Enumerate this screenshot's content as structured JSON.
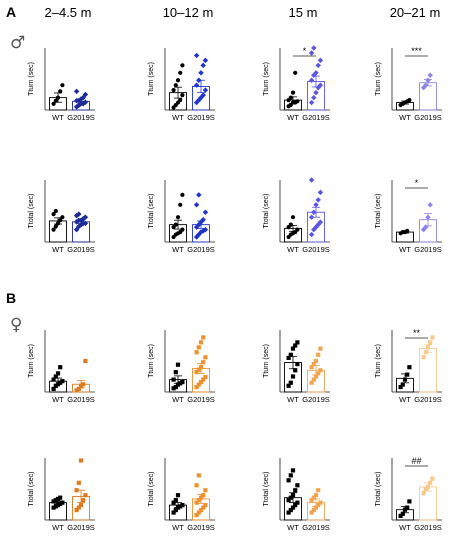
{
  "figure": {
    "panels": [
      "A",
      "B"
    ],
    "sex_symbols": [
      "♂",
      "♀"
    ],
    "age_columns": [
      "2–4.5 m",
      "10–12 m",
      "15 m",
      "20–21 m"
    ]
  },
  "colors": {
    "wt": "#000000",
    "male": [
      "#1c2a9a",
      "#1f35c9",
      "#5b57e0",
      "#8d86ea"
    ],
    "female": [
      "#e07a20",
      "#f0902e",
      "#f0a552",
      "#f8c98c"
    ],
    "axis": "#222222"
  },
  "chart_data": [
    {
      "type": "bar",
      "panel": "A",
      "row": "Tturn",
      "age": "2–4.5 m",
      "categories": [
        "WT",
        "G2019S"
      ],
      "ylabel": "Tturn (sec)",
      "means": [
        4,
        2.8
      ],
      "sem": [
        1.5,
        0.8
      ],
      "points": [
        [
          2,
          3,
          4,
          6,
          8
        ],
        [
          1,
          1.5,
          2,
          2,
          2.5,
          3,
          3,
          3.5,
          4,
          5,
          6
        ]
      ],
      "ylim": [
        0,
        20
      ],
      "significance": ""
    },
    {
      "type": "bar",
      "panel": "A",
      "row": "Tturn",
      "age": "10–12 m",
      "categories": [
        "WT",
        "G2019S"
      ],
      "ylabel": "Tturn (sec)",
      "means": [
        7,
        9.5
      ],
      "sem": [
        2.2,
        2.5
      ],
      "points": [
        [
          1,
          2,
          3,
          4,
          6,
          8,
          10,
          12,
          15,
          18
        ],
        [
          3,
          4,
          5,
          6,
          8,
          10,
          12,
          15,
          18,
          20,
          22
        ]
      ],
      "ylim": [
        0,
        25
      ],
      "significance": ""
    },
    {
      "type": "bar",
      "panel": "A",
      "row": "Tturn",
      "age": "15 m",
      "categories": [
        "WT",
        "G2019S"
      ],
      "ylabel": "Tturn (sec)",
      "means": [
        4,
        11.5
      ],
      "sem": [
        1.3,
        2.2
      ],
      "points": [
        [
          1.5,
          2,
          3,
          3,
          3.5,
          4,
          5,
          7,
          15
        ],
        [
          3,
          5,
          7,
          9,
          10,
          12,
          14,
          15,
          18,
          20,
          23,
          25
        ]
      ],
      "ylim": [
        0,
        25
      ],
      "significance": "*"
    },
    {
      "type": "bar",
      "panel": "A",
      "row": "Tturn",
      "age": "20–21 m",
      "categories": [
        "WT",
        "G2019S"
      ],
      "ylabel": "Tturn (sec)",
      "means": [
        3,
        11
      ],
      "sem": [
        0.6,
        1.3
      ],
      "points": [
        [
          2,
          2.5,
          3,
          3.5,
          4
        ],
        [
          9,
          10,
          12,
          14
        ]
      ],
      "ylim": [
        0,
        25
      ],
      "significance": "***"
    },
    {
      "type": "bar",
      "panel": "A",
      "row": "Ttotal",
      "age": "2–4.5 m",
      "categories": [
        "WT",
        "G2019S"
      ],
      "ylabel": "Ttotal (sec)",
      "means": [
        6.8,
        6.5
      ],
      "sem": [
        1,
        0.5
      ],
      "points": [
        [
          4,
          5,
          6,
          7,
          8,
          9,
          10
        ],
        [
          4,
          5,
          5.5,
          6,
          6,
          6.5,
          7,
          7,
          7.5,
          8,
          8.5,
          9
        ]
      ],
      "ylim": [
        0,
        20
      ],
      "significance": ""
    },
    {
      "type": "bar",
      "panel": "A",
      "row": "Ttotal",
      "age": "10–12 m",
      "categories": [
        "WT",
        "G2019S"
      ],
      "ylabel": "Ttotal (sec)",
      "means": [
        7,
        7
      ],
      "sem": [
        1.8,
        1.5
      ],
      "points": [
        [
          2,
          3,
          3.5,
          4,
          5,
          6,
          7,
          10,
          15,
          19
        ],
        [
          2,
          3,
          4,
          4.5,
          5,
          6,
          7,
          8,
          9,
          12,
          15,
          19
        ]
      ],
      "ylim": [
        0,
        25
      ],
      "significance": ""
    },
    {
      "type": "bar",
      "panel": "A",
      "row": "Ttotal",
      "age": "15 m",
      "categories": [
        "WT",
        "G2019S"
      ],
      "ylabel": "Ttotal (sec)",
      "means": [
        5.5,
        12
      ],
      "sem": [
        1.2,
        2
      ],
      "points": [
        [
          2,
          3,
          3.5,
          4,
          5,
          6,
          7,
          10
        ],
        [
          3,
          5,
          6,
          7,
          8,
          10,
          12,
          15,
          17,
          20,
          25
        ]
      ],
      "ylim": [
        0,
        25
      ],
      "significance": ""
    },
    {
      "type": "bar",
      "panel": "A",
      "row": "Ttotal",
      "age": "20–21 m",
      "categories": [
        "WT",
        "G2019S"
      ],
      "ylabel": "Ttotal (sec)",
      "means": [
        4,
        9
      ],
      "sem": [
        0.4,
        2.5
      ],
      "points": [
        [
          3.5,
          4,
          4,
          4.5
        ],
        [
          5,
          6,
          10,
          15
        ]
      ],
      "ylim": [
        0,
        25
      ],
      "significance": "*"
    },
    {
      "type": "bar",
      "panel": "B",
      "row": "Tturn",
      "age": "2–4.5 m",
      "categories": [
        "WT",
        "G2019S"
      ],
      "ylabel": "Tturn (sec)",
      "means": [
        3.5,
        2.5
      ],
      "sem": [
        1,
        1.2
      ],
      "points": [
        [
          1,
          2,
          2.5,
          3,
          3.5,
          4,
          5,
          6,
          8
        ],
        [
          0.5,
          1,
          2,
          2.5,
          10
        ]
      ],
      "ylim": [
        0,
        20
      ],
      "significance": ""
    },
    {
      "type": "bar",
      "panel": "B",
      "row": "Tturn",
      "age": "10–12 m",
      "categories": [
        "WT",
        "G2019S"
      ],
      "ylabel": "Tturn (sec)",
      "means": [
        5,
        9.5
      ],
      "sem": [
        1.5,
        2
      ],
      "points": [
        [
          1.5,
          2,
          3,
          3.5,
          4,
          5,
          8,
          11
        ],
        [
          2,
          3,
          4,
          5,
          6,
          8,
          9,
          10,
          12,
          14,
          16,
          18,
          20,
          22
        ]
      ],
      "ylim": [
        0,
        25
      ],
      "significance": ""
    },
    {
      "type": "bar",
      "panel": "B",
      "row": "Tturn",
      "age": "15 m",
      "categories": [
        "WT",
        "G2019S"
      ],
      "ylabel": "Tturn (sec)",
      "means": [
        9.5,
        7
      ],
      "sem": [
        2,
        1.5
      ],
      "points": [
        [
          2,
          3,
          5,
          7,
          9,
          11,
          12,
          14,
          15,
          16
        ],
        [
          3,
          4,
          5,
          6,
          7,
          8,
          9,
          10,
          12,
          14
        ]
      ],
      "ylim": [
        0,
        20
      ],
      "significance": ""
    },
    {
      "type": "bar",
      "panel": "B",
      "row": "Tturn",
      "age": "20–21 m",
      "categories": [
        "WT",
        "G2019S"
      ],
      "ylabel": "Tturn (sec)",
      "means": [
        5.5,
        17.5
      ],
      "sem": [
        1.8,
        1.5
      ],
      "points": [
        [
          2,
          3,
          5,
          7,
          10
        ],
        [
          14,
          16,
          18,
          20,
          22
        ]
      ],
      "ylim": [
        0,
        25
      ],
      "significance": "**"
    },
    {
      "type": "bar",
      "panel": "B",
      "row": "Ttotal",
      "age": "2–4.5 m",
      "categories": [
        "WT",
        "G2019S"
      ],
      "ylabel": "Ttotal (sec)",
      "means": [
        7,
        9.5
      ],
      "sem": [
        0.6,
        2.5
      ],
      "points": [
        [
          5,
          5.5,
          6,
          6.5,
          7,
          7.5,
          8,
          8.5,
          9
        ],
        [
          4,
          5,
          6,
          8,
          10,
          12,
          15,
          24
        ]
      ],
      "ylim": [
        0,
        25
      ],
      "significance": ""
    },
    {
      "type": "bar",
      "panel": "B",
      "row": "Ttotal",
      "age": "10–12 m",
      "categories": [
        "WT",
        "G2019S"
      ],
      "ylabel": "Ttotal (sec)",
      "means": [
        6,
        8.5
      ],
      "sem": [
        1,
        1.8
      ],
      "points": [
        [
          3,
          4,
          5,
          5.5,
          6,
          7,
          8,
          10
        ],
        [
          2,
          3,
          4,
          5,
          6,
          7,
          8,
          9,
          10,
          12,
          14,
          18
        ]
      ],
      "ylim": [
        0,
        25
      ],
      "significance": ""
    },
    {
      "type": "bar",
      "panel": "B",
      "row": "Ttotal",
      "age": "15 m",
      "categories": [
        "WT",
        "G2019S"
      ],
      "ylabel": "Ttotal (sec)",
      "means": [
        9,
        7
      ],
      "sem": [
        2,
        1.5
      ],
      "points": [
        [
          3,
          4,
          5,
          6,
          7,
          8,
          9,
          10,
          12,
          14,
          16,
          18,
          20
        ],
        [
          3,
          4,
          5,
          6,
          7,
          8,
          9,
          10,
          12
        ]
      ],
      "ylim": [
        0,
        25
      ],
      "significance": ""
    },
    {
      "type": "bar",
      "panel": "B",
      "row": "Ttotal",
      "age": "20–21 m",
      "categories": [
        "WT",
        "G2019S"
      ],
      "ylabel": "Ttotal (sec)",
      "means": [
        5,
        16
      ],
      "sem": [
        1.5,
        2
      ],
      "points": [
        [
          2,
          3,
          5,
          6,
          9
        ],
        [
          13,
          15,
          16,
          18,
          20
        ]
      ],
      "ylim": [
        0,
        30
      ],
      "significance": "##"
    }
  ]
}
